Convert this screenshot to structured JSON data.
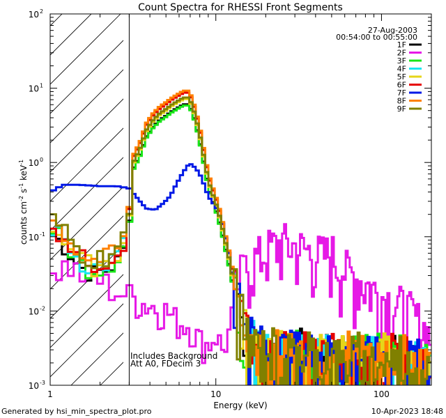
{
  "chart_data": {
    "type": "line",
    "title": "Count Spectra for RHESSI Front Segments",
    "xlabel": "Energy (keV)",
    "ylabel_base": "counts cm",
    "ylabel_parts": [
      "counts cm",
      "-2",
      " s",
      "-1",
      " keV",
      "-1"
    ],
    "x_scale": "log",
    "y_scale": "log",
    "xlim": [
      1,
      200
    ],
    "ylim": [
      0.001,
      100
    ],
    "x_ticks": [
      {
        "value": 1,
        "label": "1"
      },
      {
        "value": 10,
        "label": "10"
      },
      {
        "value": 100,
        "label": "100"
      }
    ],
    "y_ticks": [
      {
        "value": 0.001,
        "base": "10",
        "exp": "-3"
      },
      {
        "value": 0.01,
        "base": "10",
        "exp": "-2"
      },
      {
        "value": 0.1,
        "base": "10",
        "exp": "-1"
      },
      {
        "value": 1,
        "base": "10",
        "exp": "0"
      },
      {
        "value": 10,
        "base": "10",
        "exp": "1"
      },
      {
        "value": 100,
        "base": "10",
        "exp": "2"
      }
    ],
    "hatched_region_keV": [
      1,
      3
    ],
    "date": "27-Aug-2003",
    "time_range": "00:54:00 to 00:55:00",
    "annotations": [
      "Includes Background",
      "Att A0, FDecim 3"
    ],
    "series": [
      {
        "name": "1F",
        "color": "#000000"
      },
      {
        "name": "2F",
        "color": "#e619e6"
      },
      {
        "name": "3F",
        "color": "#19e619"
      },
      {
        "name": "4F",
        "color": "#19e6f0"
      },
      {
        "name": "5F",
        "color": "#e6d619"
      },
      {
        "name": "6F",
        "color": "#e60000"
      },
      {
        "name": "7F",
        "color": "#0019e6"
      },
      {
        "name": "8F",
        "color": "#ff8000"
      },
      {
        "name": "9F",
        "color": "#808000"
      }
    ],
    "shapes": {
      "thermal": [
        [
          3.0,
          0.18
        ],
        [
          3.2,
          1.0
        ],
        [
          3.5,
          1.5
        ],
        [
          3.8,
          2.6
        ],
        [
          4.2,
          3.6
        ],
        [
          4.6,
          4.4
        ],
        [
          5.0,
          5.0
        ],
        [
          5.4,
          5.7
        ],
        [
          5.8,
          6.3
        ],
        [
          6.3,
          7.0
        ],
        [
          6.7,
          7.3
        ],
        [
          7.0,
          6.6
        ],
        [
          7.5,
          4.2
        ],
        [
          8.0,
          2.3
        ],
        [
          8.5,
          1.1
        ],
        [
          9.0,
          0.55
        ],
        [
          9.6,
          0.35
        ],
        [
          10.3,
          0.22
        ],
        [
          11,
          0.12
        ],
        [
          12,
          0.05
        ],
        [
          13,
          0.02
        ],
        [
          14,
          0.008
        ],
        [
          15,
          0.004
        ],
        [
          17,
          0.002
        ],
        [
          20,
          0.0018
        ],
        [
          30,
          0.0018
        ],
        [
          50,
          0.0016
        ],
        [
          100,
          0.0015
        ],
        [
          200,
          0.0014
        ]
      ],
      "low": [
        [
          1.0,
          0.15
        ],
        [
          1.25,
          0.09
        ],
        [
          1.5,
          0.05
        ],
        [
          1.8,
          0.04
        ],
        [
          2.2,
          0.045
        ],
        [
          2.6,
          0.06
        ],
        [
          2.9,
          0.1
        ],
        [
          3.0,
          0.18
        ]
      ],
      "bg2F": [
        [
          1.0,
          0.035
        ],
        [
          1.3,
          0.042
        ],
        [
          1.6,
          0.03
        ],
        [
          2.0,
          0.026
        ],
        [
          2.5,
          0.019
        ],
        [
          3.0,
          0.016
        ],
        [
          3.5,
          0.013
        ],
        [
          4.0,
          0.012
        ],
        [
          5.0,
          0.01
        ],
        [
          6.0,
          0.007
        ],
        [
          7.0,
          0.0065
        ],
        [
          8.0,
          0.004
        ],
        [
          9.0,
          0.0035
        ],
        [
          10.0,
          0.005
        ],
        [
          11.0,
          0.003
        ],
        [
          12.0,
          0.005
        ],
        [
          13,
          0.012
        ],
        [
          14,
          0.02
        ],
        [
          16,
          0.03
        ],
        [
          18,
          0.036
        ],
        [
          20,
          0.045
        ],
        [
          23,
          0.052
        ],
        [
          26,
          0.056
        ],
        [
          30,
          0.05
        ],
        [
          35,
          0.045
        ],
        [
          40,
          0.04
        ],
        [
          45,
          0.038
        ],
        [
          50,
          0.042
        ],
        [
          55,
          0.033
        ],
        [
          60,
          0.025
        ],
        [
          70,
          0.02
        ],
        [
          80,
          0.016
        ],
        [
          90,
          0.013
        ],
        [
          100,
          0.011
        ],
        [
          120,
          0.009
        ],
        [
          150,
          0.0065
        ],
        [
          180,
          0.004
        ],
        [
          200,
          0.003
        ]
      ],
      "det7F": [
        [
          1.0,
          0.4
        ],
        [
          1.2,
          0.5
        ],
        [
          1.5,
          0.5
        ],
        [
          2.0,
          0.48
        ],
        [
          2.5,
          0.48
        ],
        [
          3.0,
          0.45
        ],
        [
          3.4,
          0.32
        ],
        [
          3.8,
          0.24
        ],
        [
          4.3,
          0.23
        ],
        [
          4.8,
          0.28
        ],
        [
          5.3,
          0.35
        ],
        [
          5.8,
          0.52
        ],
        [
          6.3,
          0.72
        ],
        [
          6.8,
          0.92
        ],
        [
          7.1,
          0.95
        ],
        [
          7.5,
          0.85
        ],
        [
          8.0,
          0.7
        ],
        [
          8.5,
          0.5
        ],
        [
          9.0,
          0.35
        ],
        [
          10,
          0.25
        ],
        [
          11,
          0.15
        ],
        [
          12,
          0.06
        ],
        [
          13,
          0.02
        ],
        [
          14,
          0.01
        ],
        [
          15,
          0.005
        ],
        [
          17,
          0.003
        ],
        [
          20,
          0.002
        ],
        [
          30,
          0.002
        ],
        [
          50,
          0.0018
        ],
        [
          100,
          0.0016
        ],
        [
          200,
          0.0015
        ]
      ]
    }
  }
}
